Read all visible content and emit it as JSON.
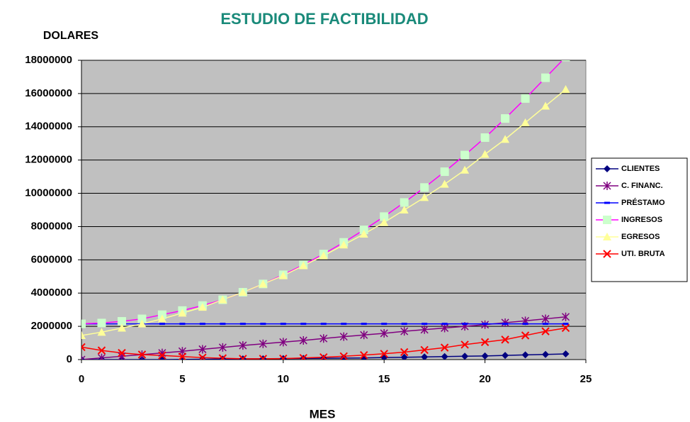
{
  "chart_data": {
    "type": "line",
    "title": "ESTUDIO DE FACTIBILIDAD",
    "y_label": "DOLARES",
    "x_label": "MES",
    "x": [
      0,
      1,
      2,
      3,
      4,
      5,
      6,
      7,
      8,
      9,
      10,
      11,
      12,
      13,
      14,
      15,
      16,
      17,
      18,
      19,
      20,
      21,
      22,
      23,
      24
    ],
    "xlim": [
      0,
      25
    ],
    "xticks": [
      0,
      5,
      10,
      15,
      20,
      25
    ],
    "ylim": [
      0,
      18000000
    ],
    "yticks": [
      0,
      2000000,
      4000000,
      6000000,
      8000000,
      10000000,
      12000000,
      14000000,
      16000000,
      18000000
    ],
    "grid": true,
    "legend": "right",
    "background": "#c0c0c0",
    "series": [
      {
        "name": "CLIENTES",
        "color": "#000080",
        "marker": "diamond",
        "marker_color": "#000080",
        "values": [
          0,
          0,
          0,
          0,
          0,
          10000,
          20000,
          30000,
          40000,
          50000,
          60000,
          70000,
          80000,
          90000,
          100000,
          120000,
          140000,
          160000,
          180000,
          200000,
          220000,
          250000,
          280000,
          310000,
          340000
        ]
      },
      {
        "name": "C. FINANC.",
        "color": "#800080",
        "marker": "asterisk",
        "marker_color": "#800080",
        "values": [
          0,
          100000,
          200000,
          300000,
          400000,
          500000,
          620000,
          730000,
          850000,
          950000,
          1050000,
          1150000,
          1270000,
          1380000,
          1480000,
          1580000,
          1700000,
          1800000,
          1900000,
          2000000,
          2100000,
          2220000,
          2330000,
          2450000,
          2570000
        ]
      },
      {
        "name": "PRÉSTAMO",
        "color": "#0000ff",
        "marker": "dash",
        "marker_color": "#0000ff",
        "values": [
          2150000,
          2150000,
          2150000,
          2150000,
          2150000,
          2150000,
          2150000,
          2150000,
          2150000,
          2150000,
          2150000,
          2150000,
          2150000,
          2150000,
          2150000,
          2150000,
          2150000,
          2150000,
          2150000,
          2150000,
          2150000,
          2150000,
          2150000,
          2150000,
          2150000
        ]
      },
      {
        "name": "INGRESOS",
        "color": "#ff00ff",
        "marker": "square",
        "marker_color": "#ccffcc",
        "values": [
          2150000,
          2200000,
          2300000,
          2450000,
          2700000,
          2950000,
          3250000,
          3600000,
          4050000,
          4550000,
          5100000,
          5700000,
          6350000,
          7050000,
          7800000,
          8600000,
          9450000,
          10350000,
          11300000,
          12300000,
          13350000,
          14500000,
          15700000,
          16950000,
          18200000
        ]
      },
      {
        "name": "EGRESOS",
        "color": "#ffff99",
        "marker": "triangle",
        "marker_color": "#ffff99",
        "values": [
          1450000,
          1650000,
          1900000,
          2150000,
          2450000,
          2800000,
          3150000,
          3600000,
          4050000,
          4550000,
          5050000,
          5650000,
          6250000,
          6900000,
          7550000,
          8250000,
          9000000,
          9750000,
          10550000,
          11400000,
          12350000,
          13250000,
          14250000,
          15250000,
          16250000
        ]
      },
      {
        "name": "UTI. BRUTA",
        "color": "#ff0000",
        "marker": "x",
        "marker_color": "#ff0000",
        "values": [
          750000,
          550000,
          400000,
          300000,
          250000,
          180000,
          120000,
          80000,
          50000,
          50000,
          60000,
          100000,
          140000,
          200000,
          270000,
          350000,
          450000,
          580000,
          720000,
          900000,
          1050000,
          1200000,
          1450000,
          1700000,
          1900000
        ]
      }
    ]
  }
}
